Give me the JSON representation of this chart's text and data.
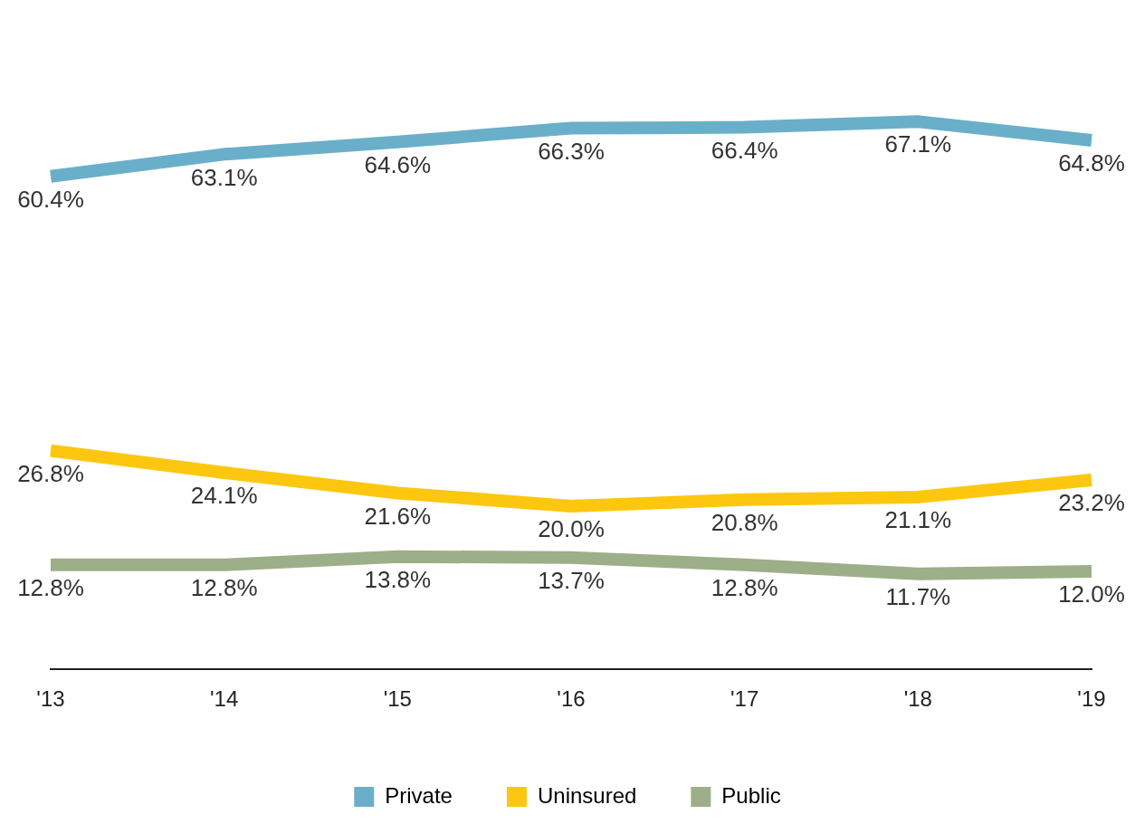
{
  "chart_data": {
    "type": "line",
    "categories": [
      "'13",
      "'14",
      "'15",
      "'16",
      "'17",
      "'18",
      "'19"
    ],
    "series": [
      {
        "name": "Private",
        "color": "#6aafc9",
        "values": [
          60.4,
          63.1,
          64.6,
          66.3,
          66.4,
          67.1,
          64.8
        ],
        "value_labels": [
          "60.4%",
          "63.1%",
          "64.6%",
          "66.3%",
          "66.4%",
          "67.1%",
          "64.8%"
        ]
      },
      {
        "name": "Uninsured",
        "color": "#fec70f",
        "values": [
          26.8,
          24.1,
          21.6,
          20.0,
          20.8,
          21.1,
          23.2
        ],
        "value_labels": [
          "26.8%",
          "24.1%",
          "21.6%",
          "20.0%",
          "20.8%",
          "21.1%",
          "23.2%"
        ]
      },
      {
        "name": "Public",
        "color": "#9caf88",
        "values": [
          12.8,
          12.8,
          13.8,
          13.7,
          12.8,
          11.7,
          12.0
        ],
        "value_labels": [
          "12.8%",
          "12.8%",
          "13.8%",
          "13.7%",
          "12.8%",
          "11.7%",
          "12.0%"
        ]
      }
    ],
    "tick_labels": "x",
    "grid": false,
    "legend": "bottom",
    "marker": "none",
    "line_style": "solid"
  }
}
